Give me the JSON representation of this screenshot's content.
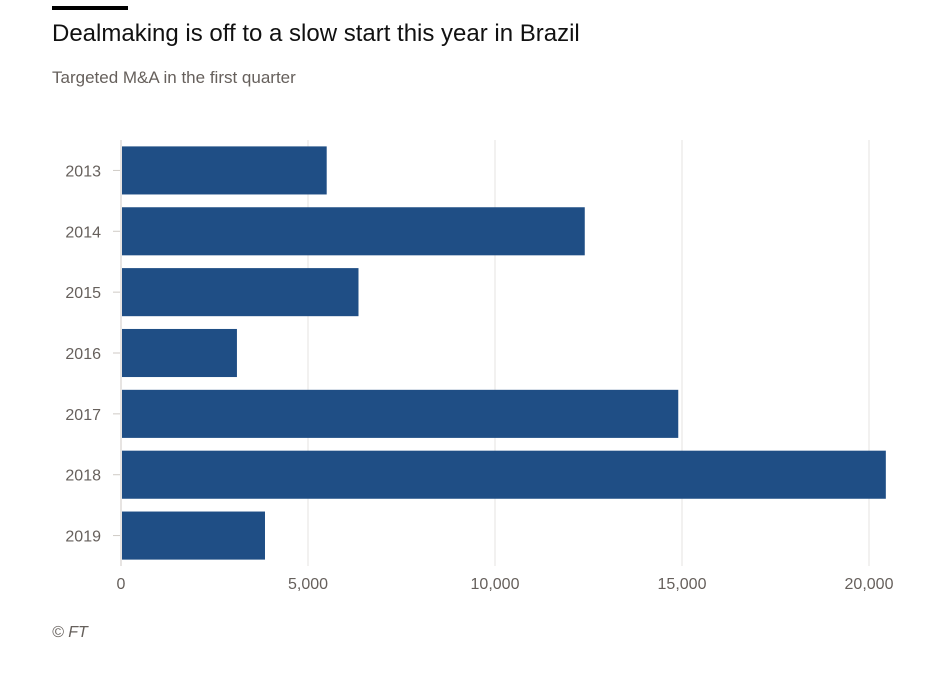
{
  "header": {
    "title": "Dealmaking is off to a slow start this year in Brazil",
    "subtitle": "Targeted M&A in the first quarter"
  },
  "footer": {
    "source": "© FT"
  },
  "chart_data": {
    "type": "bar",
    "orientation": "horizontal",
    "title": "Dealmaking is off to a slow start this year in Brazil",
    "subtitle": "Targeted M&A in the first quarter",
    "categories": [
      "2013",
      "2014",
      "2015",
      "2016",
      "2017",
      "2018",
      "2019"
    ],
    "values": [
      5500,
      12400,
      6350,
      3100,
      14900,
      20450,
      3850
    ],
    "xlim": [
      0,
      20000
    ],
    "xticks": [
      0,
      5000,
      10000,
      15000,
      20000
    ],
    "xtick_labels": [
      "0",
      "5,000",
      "10,000",
      "15,000",
      "20,000"
    ],
    "grid": true,
    "legend": "none",
    "bar_color": "#1f4e85",
    "grid_color": "#e6e3e0",
    "tick_label_color": "#66605c"
  }
}
